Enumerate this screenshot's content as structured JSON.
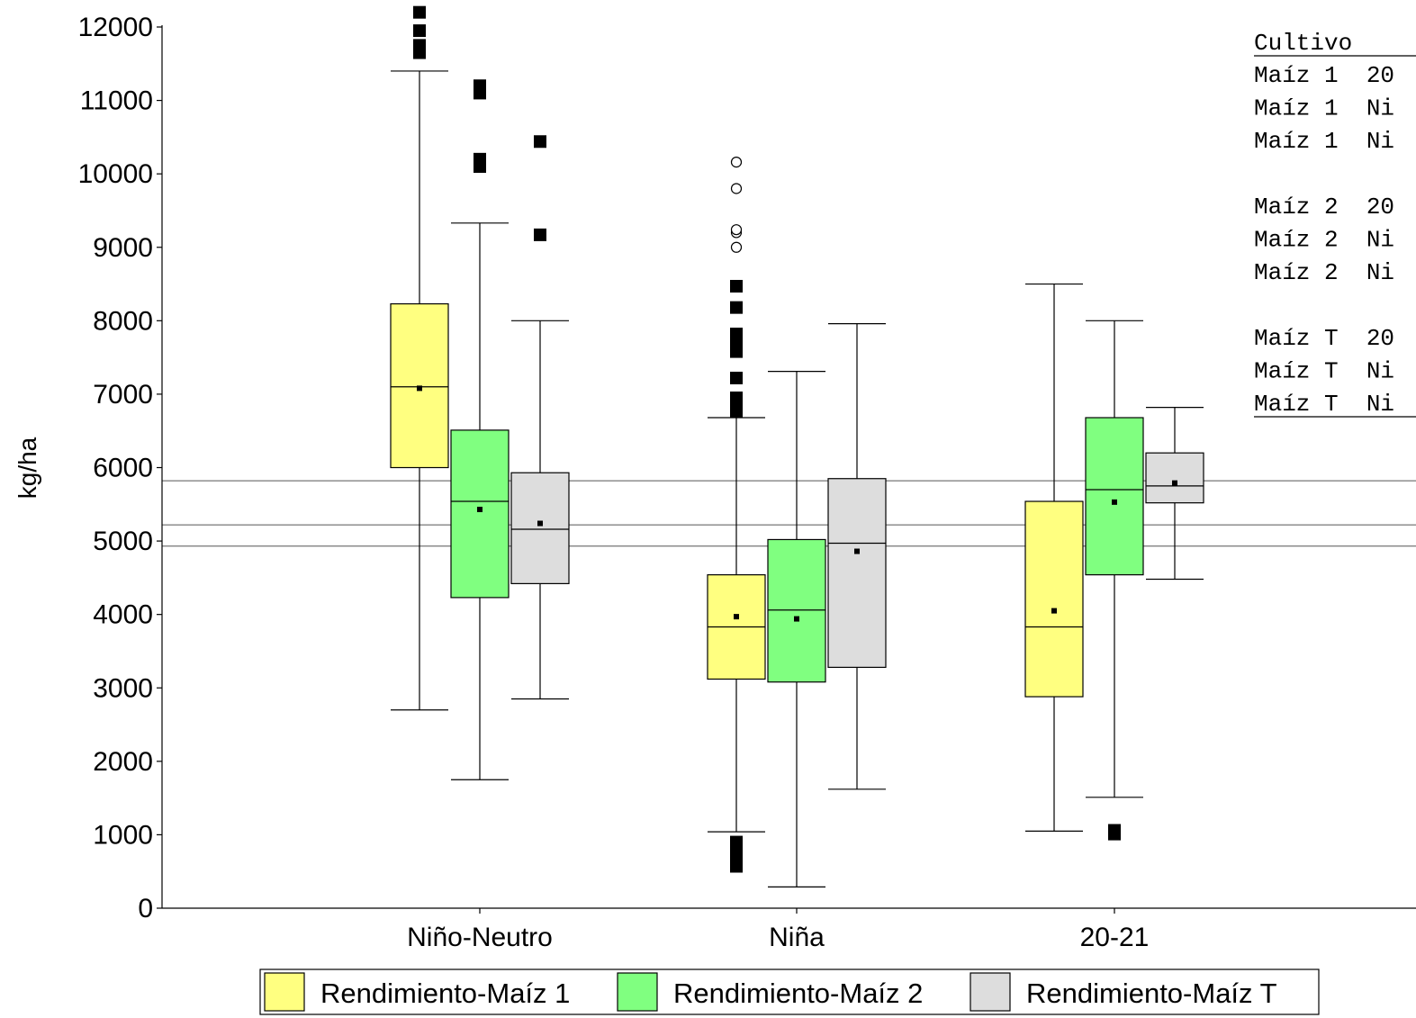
{
  "chart_data": {
    "type": "boxplot",
    "ylabel": "kg/ha",
    "xlabel": "",
    "ylim": [
      0,
      12000
    ],
    "yticks": [
      0,
      1000,
      2000,
      3000,
      4000,
      5000,
      6000,
      7000,
      8000,
      9000,
      10000,
      11000,
      12000
    ],
    "categories": [
      "Niño-Neutro",
      "Niña",
      "20-21"
    ],
    "reference_lines": [
      4930,
      5220,
      5820
    ],
    "series": [
      {
        "name": "Rendimiento-Maíz 1",
        "color": "#ffff80",
        "boxes": [
          {
            "category": "Niño-Neutro",
            "whisker_low": 2700,
            "q1": 6000,
            "median": 7100,
            "q3": 8230,
            "whisker_high": 11400,
            "mean": 7080,
            "outliers": [
              11650,
              11750,
              11950,
              12200
            ]
          },
          {
            "category": "Niña",
            "whisker_low": 1040,
            "q1": 3120,
            "median": 3830,
            "q3": 4540,
            "whisker_high": 6680,
            "mean": 3970,
            "outliers": [
              570,
              650,
              730,
              900,
              6770,
              6870,
              6950,
              7220,
              7580,
              7700,
              7820,
              8180,
              8470
            ]
          },
          {
            "category": "20-21",
            "whisker_low": 1050,
            "q1": 2880,
            "median": 3830,
            "q3": 5540,
            "whisker_high": 8500,
            "mean": 4050,
            "outliers": []
          }
        ]
      },
      {
        "name": "Rendimiento-Maíz 2",
        "color": "#80ff80",
        "boxes": [
          {
            "category": "Niño-Neutro",
            "whisker_low": 1750,
            "q1": 4230,
            "median": 5540,
            "q3": 6510,
            "whisker_high": 9330,
            "mean": 5430,
            "outliers": [
              10100,
              10200,
              11100,
              11200
            ]
          },
          {
            "category": "Niña",
            "whisker_low": 290,
            "q1": 3080,
            "median": 4060,
            "q3": 5020,
            "whisker_high": 7310,
            "mean": 3940,
            "outliers": []
          },
          {
            "category": "20-21",
            "whisker_low": 1510,
            "q1": 4540,
            "median": 5700,
            "q3": 6680,
            "whisker_high": 8000,
            "mean": 5530,
            "outliers": [
              1010,
              1060
            ]
          }
        ]
      },
      {
        "name": "Rendimiento-Maíz T",
        "color": "#dddddd",
        "boxes": [
          {
            "category": "Niño-Neutro",
            "whisker_low": 2850,
            "q1": 4420,
            "median": 5160,
            "q3": 5930,
            "whisker_high": 8000,
            "mean": 5240,
            "outliers": [
              9170,
              10440
            ]
          },
          {
            "category": "Niña",
            "whisker_low": 1620,
            "q1": 3280,
            "median": 4970,
            "q3": 5850,
            "whisker_high": 7960,
            "mean": 4860,
            "outliers": []
          },
          {
            "category": "20-21",
            "whisker_low": 4480,
            "q1": 5520,
            "median": 5750,
            "q3": 6200,
            "whisker_high": 6820,
            "mean": 5790,
            "outliers": []
          }
        ]
      }
    ],
    "extreme_outliers_open": [
      {
        "category": "Niña",
        "series": "Rendimiento-Maíz 1",
        "values": [
          9000,
          9200,
          9240,
          9800,
          10160
        ]
      }
    ],
    "legend_position": "bottom",
    "side_table": {
      "header": "Cultivo",
      "groups": [
        [
          "Maíz 1  20",
          "Maíz 1  Ni",
          "Maíz 1  Ni"
        ],
        [
          "Maíz 2  20",
          "Maíz 2  Ni",
          "Maíz 2  Ni"
        ],
        [
          "Maíz T  20",
          "Maíz T  Ni",
          "Maíz T  Ni"
        ]
      ]
    }
  }
}
